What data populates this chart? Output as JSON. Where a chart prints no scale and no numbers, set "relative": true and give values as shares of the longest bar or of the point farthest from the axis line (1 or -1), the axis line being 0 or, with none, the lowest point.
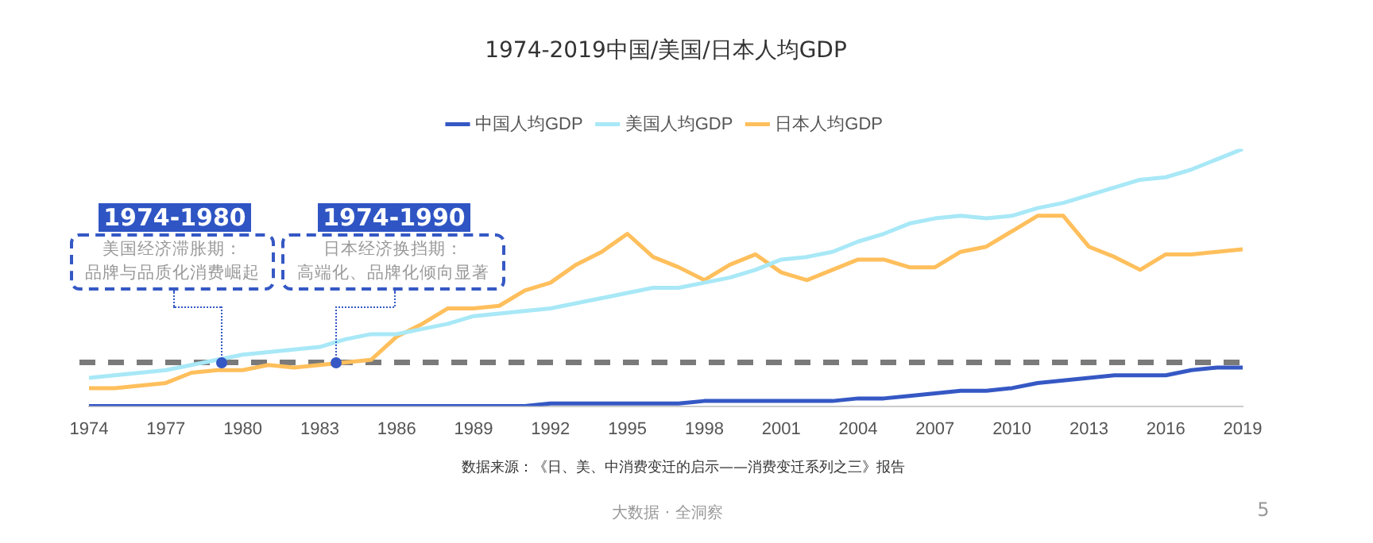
{
  "chart_data": {
    "type": "line",
    "title": "1974-2019中国/美国/日本人均GDP",
    "relative": true,
    "legend": "top",
    "grid": false,
    "marker": "none",
    "line_style": "solid",
    "categories": [
      "1974",
      null,
      null,
      "1977",
      null,
      null,
      "1980",
      null,
      null,
      "1983",
      null,
      null,
      "1986",
      null,
      null,
      "1989",
      null,
      null,
      "1992",
      null,
      null,
      "1995",
      null,
      null,
      "1998",
      null,
      null,
      "2001",
      null,
      null,
      "2004",
      null,
      null,
      "2007",
      null,
      null,
      "2010",
      null,
      null,
      "2013",
      null,
      null,
      "2016",
      null,
      null,
      "2019"
    ],
    "series": [
      {
        "name": "中国人均GDP",
        "color": "#3558c4",
        "values": [
          0,
          0,
          0,
          0,
          0,
          0,
          0,
          0,
          0,
          0,
          0,
          0,
          0,
          0,
          0,
          0,
          0,
          0,
          0.01,
          0.01,
          0.01,
          0.01,
          0.01,
          0.01,
          0.02,
          0.02,
          0.02,
          0.02,
          0.02,
          0.02,
          0.03,
          0.03,
          0.04,
          0.05,
          0.06,
          0.06,
          0.07,
          0.09,
          0.1,
          0.11,
          0.12,
          0.12,
          0.12,
          0.14,
          0.15,
          0.15
        ]
      },
      {
        "name": "美国人均GDP",
        "color": "#a8e8f7",
        "values": [
          0.11,
          0.12,
          0.13,
          0.14,
          0.16,
          0.18,
          0.2,
          0.21,
          0.22,
          0.23,
          0.26,
          0.28,
          0.28,
          0.3,
          0.32,
          0.35,
          0.36,
          0.37,
          0.38,
          0.4,
          0.42,
          0.44,
          0.46,
          0.46,
          0.48,
          0.5,
          0.53,
          0.57,
          0.58,
          0.6,
          0.64,
          0.67,
          0.71,
          0.73,
          0.74,
          0.73,
          0.74,
          0.77,
          0.79,
          0.82,
          0.85,
          0.88,
          0.89,
          0.92,
          0.96,
          1
        ]
      },
      {
        "name": "日本人均GDP",
        "color": "#ffbf5c",
        "values": [
          0.07,
          0.07,
          0.08,
          0.09,
          0.13,
          0.14,
          0.14,
          0.16,
          0.15,
          0.16,
          0.17,
          0.18,
          0.27,
          0.32,
          0.38,
          0.38,
          0.39,
          0.45,
          0.48,
          0.55,
          0.6,
          0.67,
          0.58,
          0.54,
          0.49,
          0.55,
          0.59,
          0.52,
          0.49,
          0.53,
          0.57,
          0.57,
          0.54,
          0.54,
          0.6,
          0.62,
          0.68,
          0.74,
          0.74,
          0.62,
          0.58,
          0.53,
          0.59,
          0.59,
          0.6,
          0.61
        ]
      }
    ],
    "ref_lines": [
      {
        "axis": "y",
        "value": 0.17,
        "color": "#7a7a7a",
        "line_style": "dashed"
      }
    ],
    "annotations": [
      "1974-1980",
      "美国经济滞胀期：",
      "品牌与品质化消费崛起",
      "1974-1990",
      "日本经济换挡期：",
      "高端化、品牌化倾向显著",
      "数据来源：《日、美、中消费变迁的启示——消费变迁系列之三》报告",
      "大数据 · 全洞察",
      "5"
    ]
  }
}
